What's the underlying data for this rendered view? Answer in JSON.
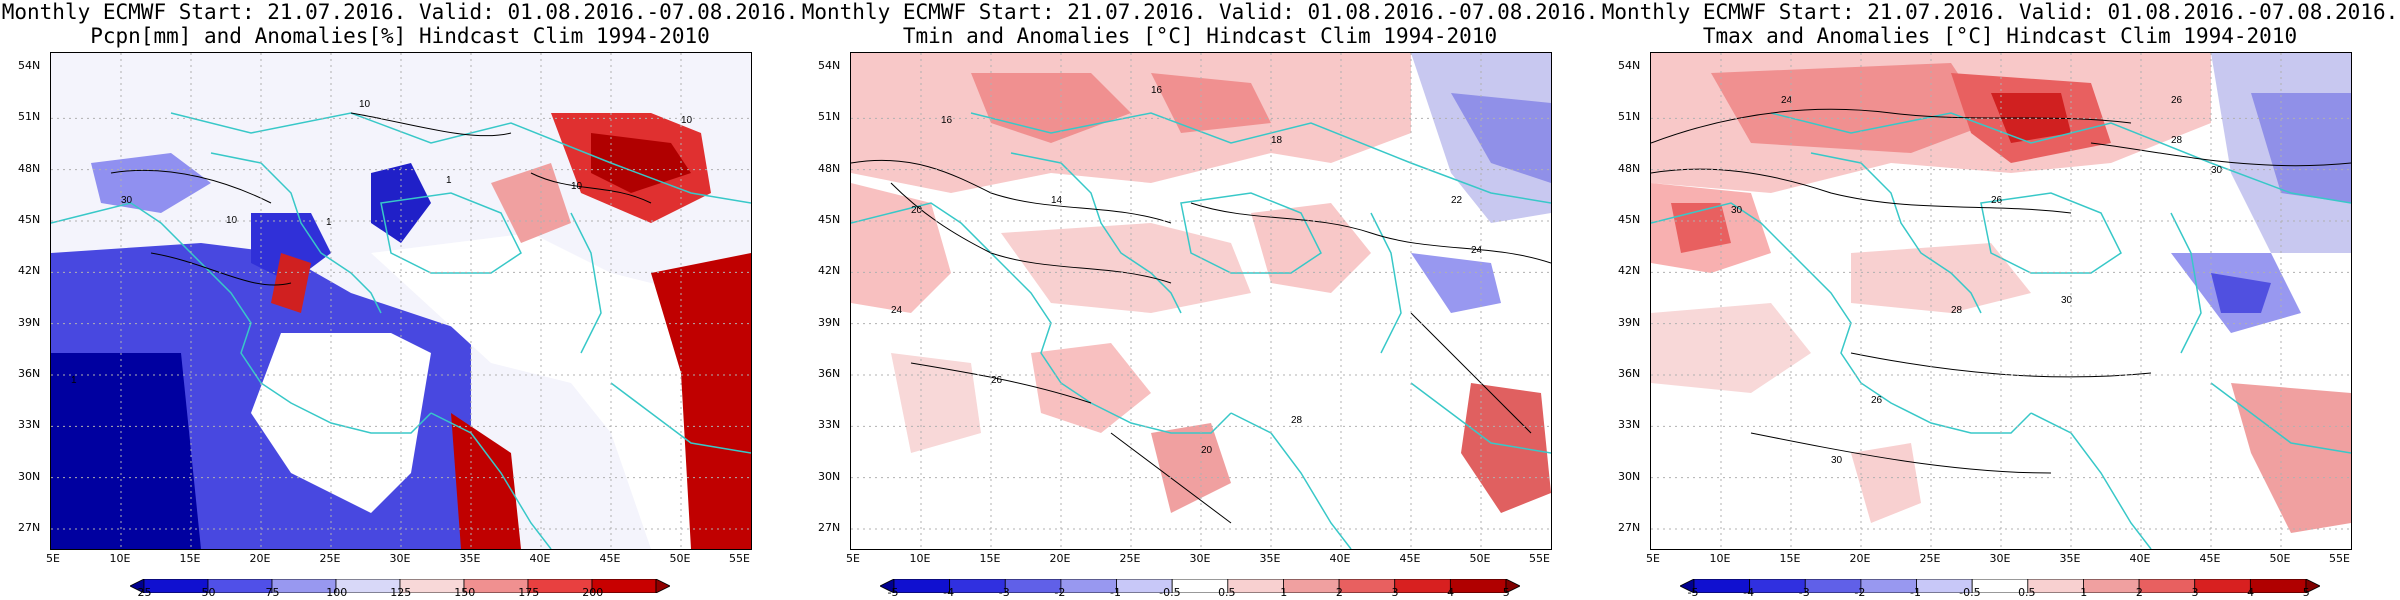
{
  "panels": [
    {
      "title_line1": "Monthly ECMWF Start: 21.07.2016. Valid: 01.08.2016.-07.08.2016.",
      "title_line2": "Pcpn[mm] and Anomalies[%] Hindcast Clim 1994-2010",
      "variable": "precipitation",
      "colorbar": {
        "labels": [
          "25",
          "50",
          "75",
          "100",
          "125",
          "150",
          "175",
          "200"
        ],
        "colors": [
          "#000090",
          "#1010d0",
          "#5050e8",
          "#9898f0",
          "#d8d8f8",
          "#f8d8d8",
          "#f09090",
          "#e84040",
          "#c80000",
          "#900000"
        ]
      },
      "contour_labels": [
        "10",
        "10",
        "1",
        "1",
        "10",
        "30",
        "10",
        "1"
      ]
    },
    {
      "title_line1": "Monthly ECMWF Start: 21.07.2016. Valid: 01.08.2016.-07.08.2016.",
      "title_line2": "Tmin and Anomalies [°C] Hindcast Clim 1994-2010",
      "variable": "tmin",
      "colorbar": {
        "labels": [
          "-5",
          "-4",
          "-3",
          "-2",
          "-1",
          "-0.5",
          "0.5",
          "1",
          "2",
          "3",
          "4",
          "5"
        ],
        "colors": [
          "#000090",
          "#1010d0",
          "#3030e0",
          "#6060e8",
          "#9898f0",
          "#c8c8f8",
          "#ffffff",
          "#f8d0d0",
          "#f0a0a0",
          "#e86060",
          "#d82020",
          "#b00000",
          "#800000"
        ]
      },
      "contour_labels": [
        "16",
        "16",
        "18",
        "14",
        "20",
        "22",
        "24",
        "26",
        "28",
        "20",
        "24"
      ]
    },
    {
      "title_line1": "Monthly ECMWF Start: 21.07.2016. Valid: 01.08.2016.-07.08.2016.",
      "title_line2": "Tmax and Anomalies [°C] Hindcast Clim 1994-2010",
      "variable": "tmax",
      "colorbar": {
        "labels": [
          "-5",
          "-4",
          "-3",
          "-2",
          "-1",
          "-0.5",
          "0.5",
          "1",
          "2",
          "3",
          "4",
          "5"
        ],
        "colors": [
          "#000090",
          "#1010d0",
          "#3030e0",
          "#6060e8",
          "#9898f0",
          "#c8c8f8",
          "#ffffff",
          "#f8d0d0",
          "#f0a0a0",
          "#e86060",
          "#d82020",
          "#b00000",
          "#800000"
        ]
      },
      "contour_labels": [
        "24",
        "26",
        "28",
        "30",
        "26",
        "30",
        "28",
        "30",
        "26",
        "30"
      ]
    }
  ],
  "lat_labels": [
    "54N",
    "51N",
    "48N",
    "45N",
    "42N",
    "39N",
    "36N",
    "33N",
    "30N",
    "27N"
  ],
  "lon_labels": [
    "5E",
    "10E",
    "15E",
    "20E",
    "25E",
    "30E",
    "35E",
    "40E",
    "45E",
    "50E",
    "55E"
  ],
  "colors": {
    "coastline": "#38c8c8",
    "contour": "#000000",
    "grid": "#b0b0b0",
    "frame": "#000000"
  }
}
